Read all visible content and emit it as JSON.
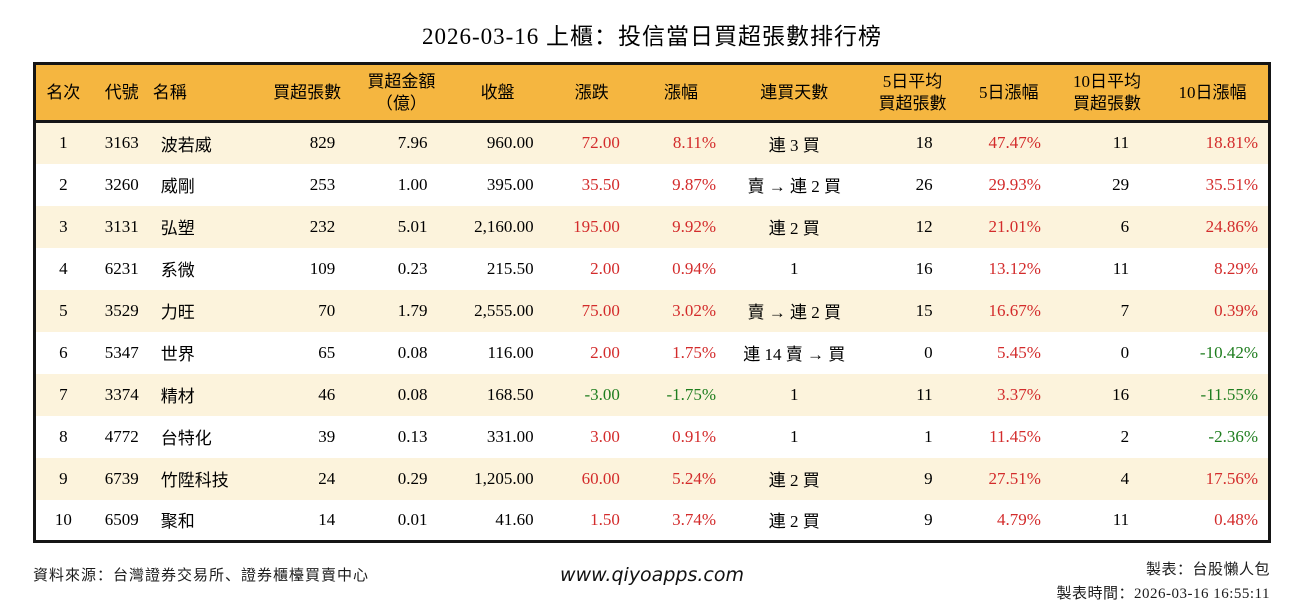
{
  "title": "2026-03-16 上櫃：投信當日買超張數排行榜",
  "colors": {
    "header_bg": "#F5B640",
    "stripe": "#FCF3DC",
    "up_red": "#D32B2B",
    "down_green": "#1E7D1E"
  },
  "table": {
    "column_keys": [
      "rank",
      "code",
      "name",
      "net_buy",
      "amount",
      "close",
      "change",
      "change_pct",
      "streak",
      "avg5",
      "pct5",
      "avg10",
      "pct10"
    ],
    "colored_columns": [
      "change",
      "change_pct",
      "pct5",
      "pct10"
    ],
    "headers": {
      "rank": "名次",
      "code": "代號",
      "name": "名稱",
      "net_buy": "買超張數",
      "amount": "買超金額\n（億）",
      "close": "收盤",
      "change": "漲跌",
      "change_pct": "漲幅",
      "streak": "連買天數",
      "avg5": "5日平均\n買超張數",
      "pct5": "5日漲幅",
      "avg10": "10日平均\n買超張數",
      "pct10": "10日漲幅"
    },
    "rows": [
      {
        "rank": "1",
        "code": "3163",
        "name": "波若威",
        "net_buy": "829",
        "amount": "7.96",
        "close": "960.00",
        "change": "72.00",
        "change_pct": "8.11%",
        "streak": "連 3 買",
        "avg5": "18",
        "pct5": "47.47%",
        "avg10": "11",
        "pct10": "18.81%"
      },
      {
        "rank": "2",
        "code": "3260",
        "name": "威剛",
        "net_buy": "253",
        "amount": "1.00",
        "close": "395.00",
        "change": "35.50",
        "change_pct": "9.87%",
        "streak": "賣 → 連 2 買",
        "avg5": "26",
        "pct5": "29.93%",
        "avg10": "29",
        "pct10": "35.51%"
      },
      {
        "rank": "3",
        "code": "3131",
        "name": "弘塑",
        "net_buy": "232",
        "amount": "5.01",
        "close": "2,160.00",
        "change": "195.00",
        "change_pct": "9.92%",
        "streak": "連 2 買",
        "avg5": "12",
        "pct5": "21.01%",
        "avg10": "6",
        "pct10": "24.86%"
      },
      {
        "rank": "4",
        "code": "6231",
        "name": "系微",
        "net_buy": "109",
        "amount": "0.23",
        "close": "215.50",
        "change": "2.00",
        "change_pct": "0.94%",
        "streak": "1",
        "avg5": "16",
        "pct5": "13.12%",
        "avg10": "11",
        "pct10": "8.29%"
      },
      {
        "rank": "5",
        "code": "3529",
        "name": "力旺",
        "net_buy": "70",
        "amount": "1.79",
        "close": "2,555.00",
        "change": "75.00",
        "change_pct": "3.02%",
        "streak": "賣 → 連 2 買",
        "avg5": "15",
        "pct5": "16.67%",
        "avg10": "7",
        "pct10": "0.39%"
      },
      {
        "rank": "6",
        "code": "5347",
        "name": "世界",
        "net_buy": "65",
        "amount": "0.08",
        "close": "116.00",
        "change": "2.00",
        "change_pct": "1.75%",
        "streak": "連 14 賣 → 買",
        "avg5": "0",
        "pct5": "5.45%",
        "avg10": "0",
        "pct10": "-10.42%"
      },
      {
        "rank": "7",
        "code": "3374",
        "name": "精材",
        "net_buy": "46",
        "amount": "0.08",
        "close": "168.50",
        "change": "-3.00",
        "change_pct": "-1.75%",
        "streak": "1",
        "avg5": "11",
        "pct5": "3.37%",
        "avg10": "16",
        "pct10": "-11.55%"
      },
      {
        "rank": "8",
        "code": "4772",
        "name": "台特化",
        "net_buy": "39",
        "amount": "0.13",
        "close": "331.00",
        "change": "3.00",
        "change_pct": "0.91%",
        "streak": "1",
        "avg5": "1",
        "pct5": "11.45%",
        "avg10": "2",
        "pct10": "-2.36%"
      },
      {
        "rank": "9",
        "code": "6739",
        "name": "竹陞科技",
        "net_buy": "24",
        "amount": "0.29",
        "close": "1,205.00",
        "change": "60.00",
        "change_pct": "5.24%",
        "streak": "連 2 買",
        "avg5": "9",
        "pct5": "27.51%",
        "avg10": "4",
        "pct10": "17.56%"
      },
      {
        "rank": "10",
        "code": "6509",
        "name": "聚和",
        "net_buy": "14",
        "amount": "0.01",
        "close": "41.60",
        "change": "1.50",
        "change_pct": "3.74%",
        "streak": "連 2 買",
        "avg5": "9",
        "pct5": "4.79%",
        "avg10": "11",
        "pct10": "0.48%"
      }
    ]
  },
  "footer": {
    "source": "資料來源：台灣證券交易所、證券櫃檯買賣中心",
    "website": "www.qiyoapps.com",
    "maker": "製表：台股懶人包",
    "made_time": "製表時間：2026-03-16 16:55:11"
  }
}
